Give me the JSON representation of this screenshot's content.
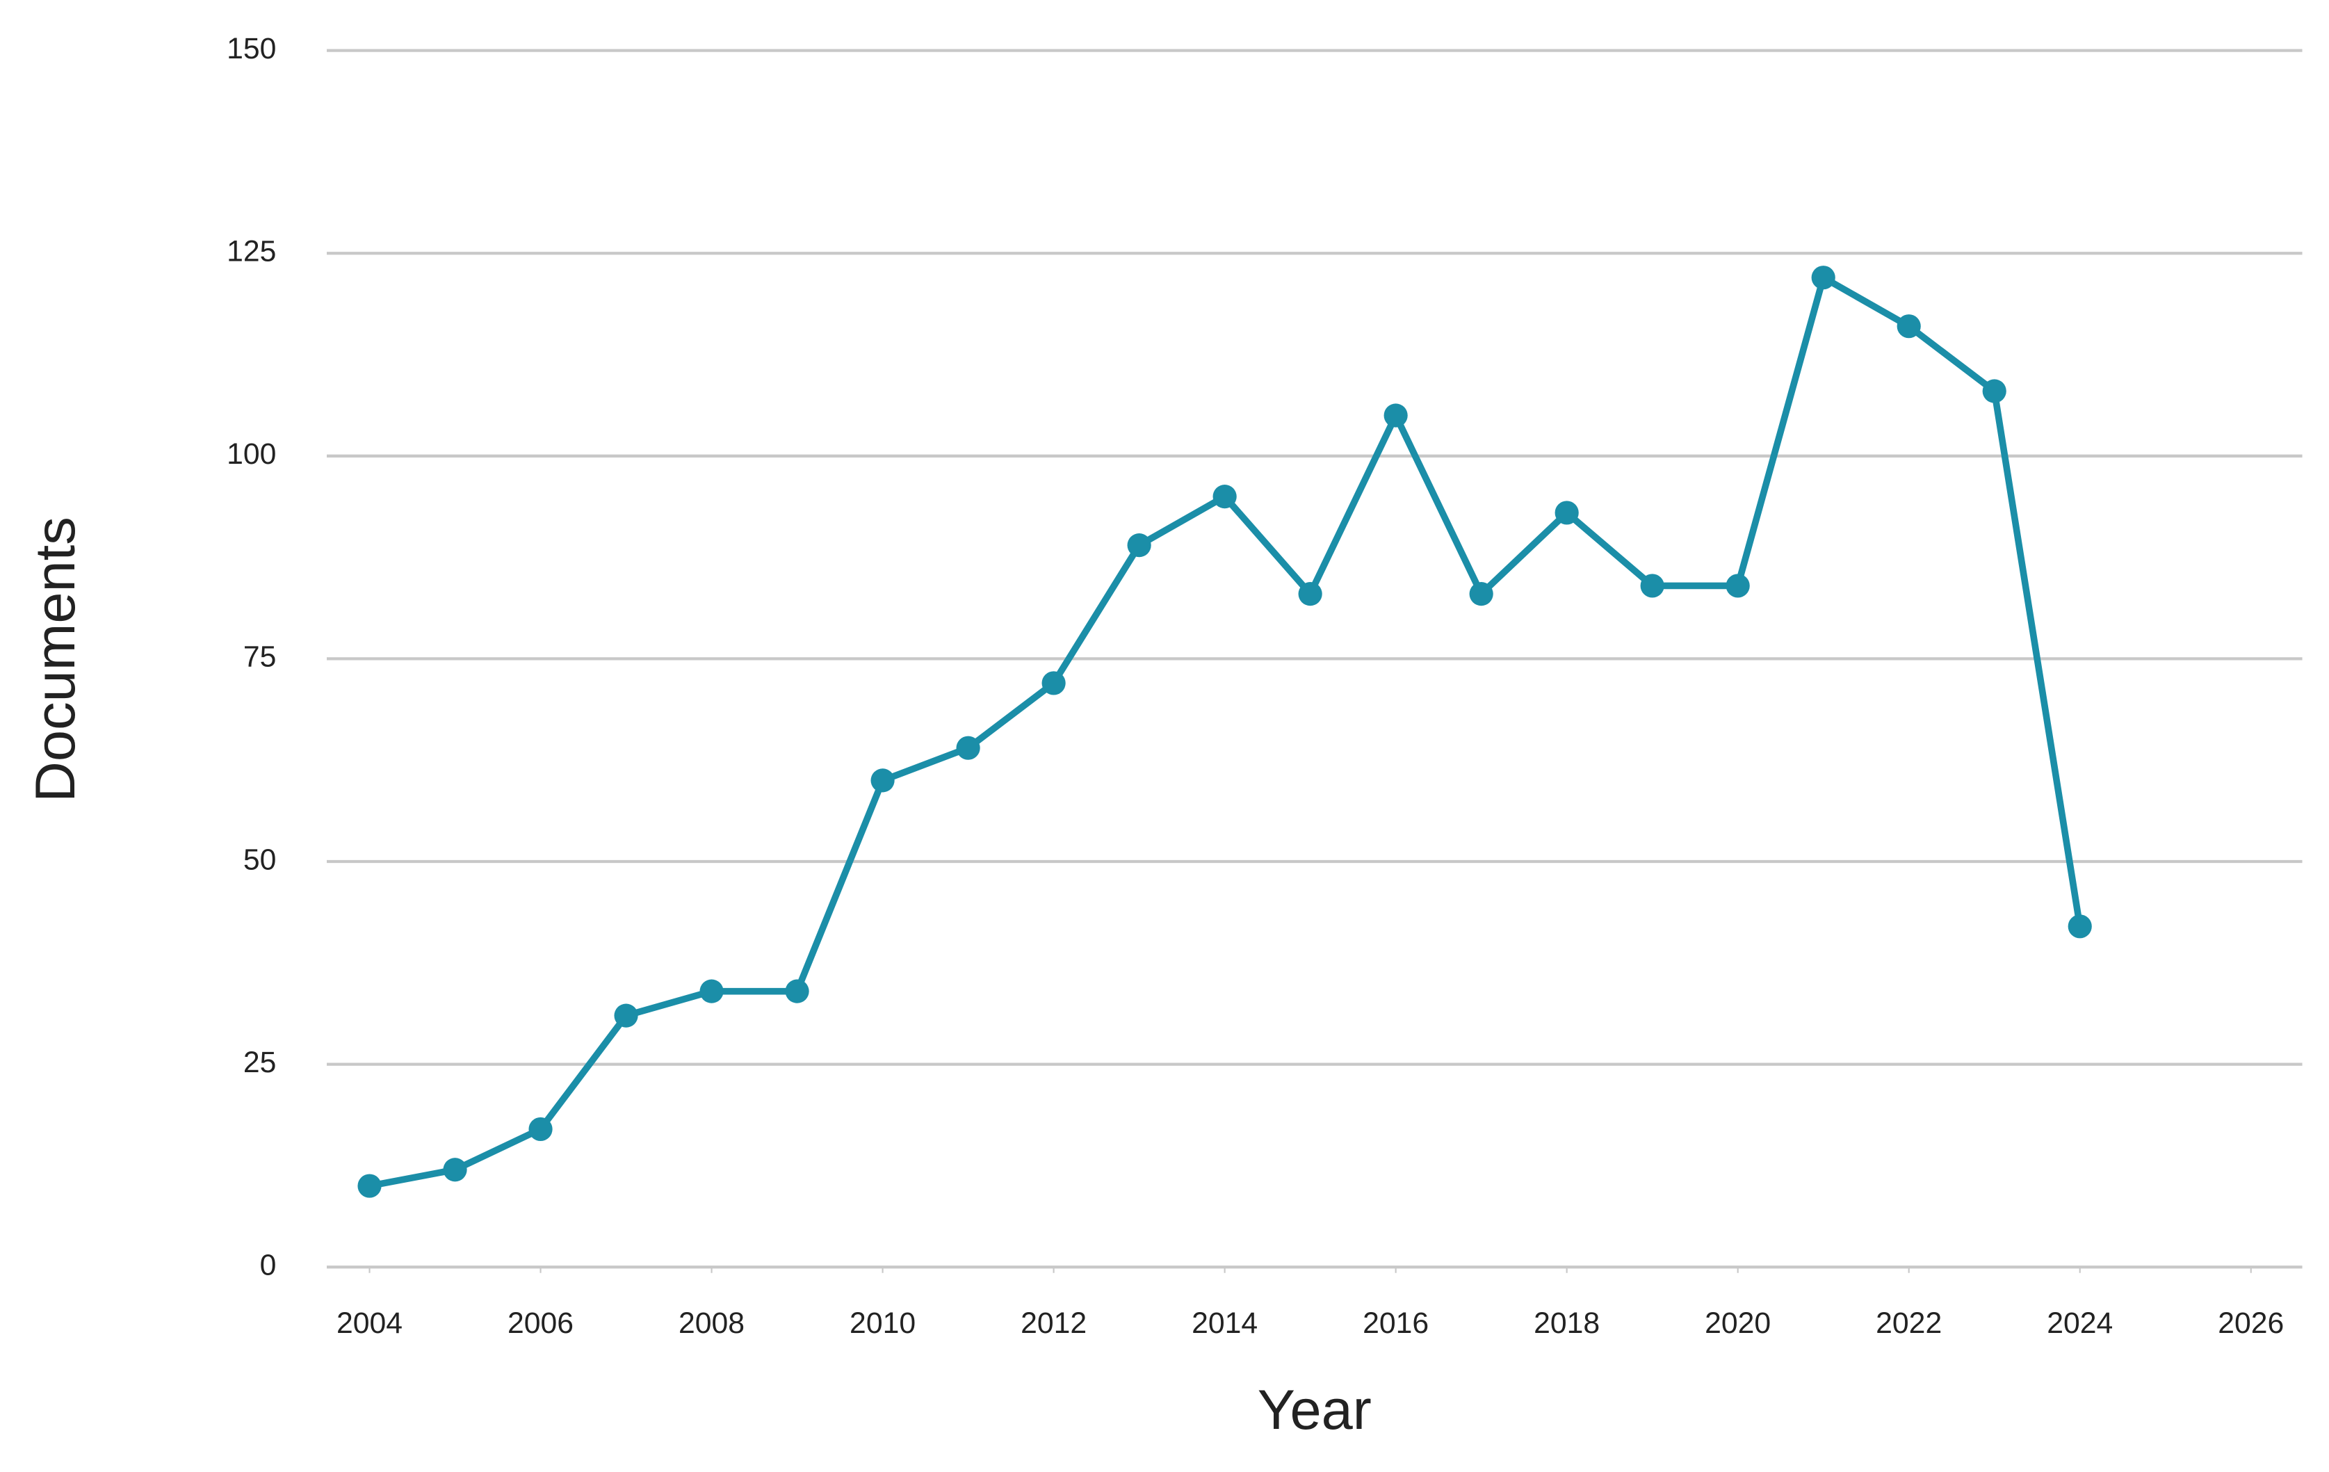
{
  "chart_data": {
    "type": "line",
    "x_label": "Year",
    "y_label": "Documents",
    "x": [
      2004,
      2005,
      2006,
      2007,
      2008,
      2009,
      2010,
      2011,
      2012,
      2013,
      2014,
      2015,
      2016,
      2017,
      2018,
      2019,
      2020,
      2021,
      2022,
      2023,
      2024
    ],
    "series": [
      {
        "name": "Documents",
        "color": "#1b8ea8",
        "values": [
          10,
          12,
          17,
          31,
          34,
          34,
          60,
          64,
          72,
          89,
          95,
          83,
          105,
          83,
          93,
          84,
          84,
          122,
          116,
          108,
          42
        ]
      }
    ],
    "xlim": [
      2003.5,
      2026.6
    ],
    "xticks": [
      2004,
      2006,
      2008,
      2010,
      2012,
      2014,
      2016,
      2018,
      2020,
      2022,
      2024,
      2026
    ],
    "ylim": [
      0,
      150
    ],
    "yticks": [
      0,
      25,
      50,
      75,
      100,
      125,
      150
    ],
    "grid": true
  }
}
